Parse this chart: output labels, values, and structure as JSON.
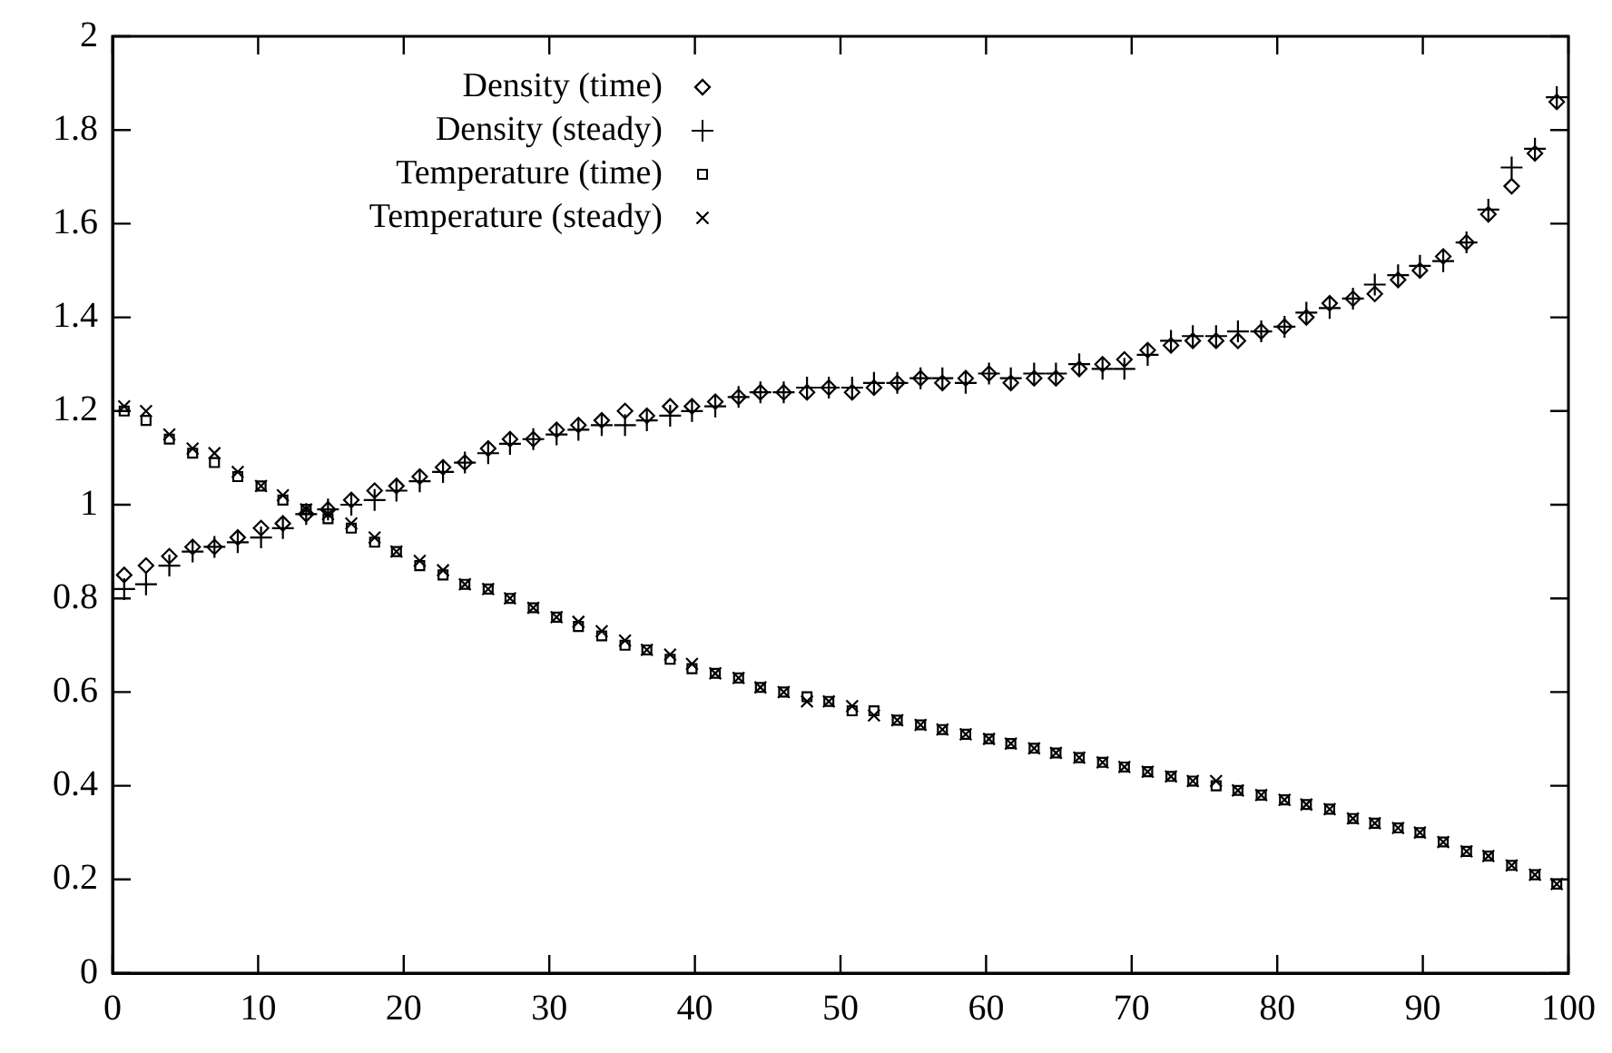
{
  "chart_data": {
    "type": "scatter",
    "x": [
      0.8,
      2.3,
      3.9,
      5.5,
      7.0,
      8.6,
      10.2,
      11.7,
      13.3,
      14.8,
      16.4,
      18.0,
      19.5,
      21.1,
      22.7,
      24.2,
      25.8,
      27.3,
      28.9,
      30.5,
      32.0,
      33.6,
      35.2,
      36.7,
      38.3,
      39.8,
      41.4,
      43.0,
      44.5,
      46.1,
      47.7,
      49.2,
      50.8,
      52.3,
      53.9,
      55.5,
      57.0,
      58.6,
      60.2,
      61.7,
      63.3,
      64.8,
      66.4,
      68.0,
      69.5,
      71.1,
      72.7,
      74.2,
      75.8,
      77.3,
      78.9,
      80.5,
      82.0,
      83.6,
      85.2,
      86.7,
      88.3,
      89.8,
      91.4,
      93.0,
      94.5,
      96.1,
      97.7,
      99.2
    ],
    "series": [
      {
        "name": "Density (time)",
        "color": "#000000",
        "marker": "diamond",
        "values": [
          0.85,
          0.87,
          0.89,
          0.91,
          0.91,
          0.93,
          0.95,
          0.96,
          0.98,
          0.99,
          1.01,
          1.03,
          1.04,
          1.06,
          1.08,
          1.09,
          1.12,
          1.14,
          1.14,
          1.16,
          1.17,
          1.18,
          1.2,
          1.19,
          1.21,
          1.21,
          1.22,
          1.23,
          1.24,
          1.24,
          1.24,
          1.25,
          1.24,
          1.25,
          1.26,
          1.27,
          1.26,
          1.27,
          1.28,
          1.26,
          1.27,
          1.27,
          1.29,
          1.3,
          1.31,
          1.33,
          1.34,
          1.35,
          1.35,
          1.35,
          1.37,
          1.38,
          1.4,
          1.43,
          1.44,
          1.45,
          1.48,
          1.5,
          1.53,
          1.56,
          1.62,
          1.68,
          1.75,
          1.86
        ]
      },
      {
        "name": "Density (steady)",
        "color": "#000000",
        "marker": "cross",
        "values": [
          0.82,
          0.83,
          0.87,
          0.9,
          0.91,
          0.92,
          0.93,
          0.95,
          0.98,
          0.99,
          1.0,
          1.01,
          1.03,
          1.05,
          1.07,
          1.09,
          1.11,
          1.13,
          1.14,
          1.15,
          1.16,
          1.17,
          1.17,
          1.18,
          1.19,
          1.2,
          1.21,
          1.23,
          1.24,
          1.24,
          1.25,
          1.25,
          1.25,
          1.26,
          1.26,
          1.27,
          1.27,
          1.26,
          1.28,
          1.27,
          1.28,
          1.28,
          1.3,
          1.29,
          1.29,
          1.32,
          1.35,
          1.36,
          1.36,
          1.37,
          1.37,
          1.38,
          1.41,
          1.42,
          1.44,
          1.47,
          1.49,
          1.51,
          1.52,
          1.56,
          1.63,
          1.72,
          1.76,
          1.87
        ]
      },
      {
        "name": "Temperature (time)",
        "color": "#000000",
        "marker": "square",
        "values": [
          1.2,
          1.18,
          1.14,
          1.11,
          1.09,
          1.06,
          1.04,
          1.01,
          0.99,
          0.97,
          0.95,
          0.92,
          0.9,
          0.87,
          0.85,
          0.83,
          0.82,
          0.8,
          0.78,
          0.76,
          0.74,
          0.72,
          0.7,
          0.69,
          0.67,
          0.65,
          0.64,
          0.63,
          0.61,
          0.6,
          0.59,
          0.58,
          0.56,
          0.56,
          0.54,
          0.53,
          0.52,
          0.51,
          0.5,
          0.49,
          0.48,
          0.47,
          0.46,
          0.45,
          0.44,
          0.43,
          0.42,
          0.41,
          0.4,
          0.39,
          0.38,
          0.37,
          0.36,
          0.35,
          0.33,
          0.32,
          0.31,
          0.3,
          0.28,
          0.26,
          0.25,
          0.23,
          0.21,
          0.19
        ]
      },
      {
        "name": "Temperature (steady)",
        "color": "#000000",
        "marker": "x",
        "values": [
          1.21,
          1.2,
          1.15,
          1.12,
          1.11,
          1.07,
          1.04,
          1.02,
          0.99,
          0.98,
          0.96,
          0.93,
          0.9,
          0.88,
          0.86,
          0.83,
          0.82,
          0.8,
          0.78,
          0.76,
          0.75,
          0.73,
          0.71,
          0.69,
          0.68,
          0.66,
          0.64,
          0.63,
          0.61,
          0.6,
          0.58,
          0.58,
          0.57,
          0.55,
          0.54,
          0.53,
          0.52,
          0.51,
          0.5,
          0.49,
          0.48,
          0.47,
          0.46,
          0.45,
          0.44,
          0.43,
          0.42,
          0.41,
          0.41,
          0.39,
          0.38,
          0.37,
          0.36,
          0.35,
          0.33,
          0.32,
          0.31,
          0.3,
          0.28,
          0.26,
          0.25,
          0.23,
          0.21,
          0.19
        ]
      }
    ],
    "xlim": [
      0,
      100
    ],
    "xticks": [
      0,
      10,
      20,
      30,
      40,
      50,
      60,
      70,
      80,
      90,
      100
    ],
    "ylim": [
      0,
      2
    ],
    "yticks": [
      0,
      0.2,
      0.4,
      0.6,
      0.8,
      1,
      1.2,
      1.4,
      1.6,
      1.8,
      2
    ],
    "grid": false,
    "legend": "top left"
  }
}
